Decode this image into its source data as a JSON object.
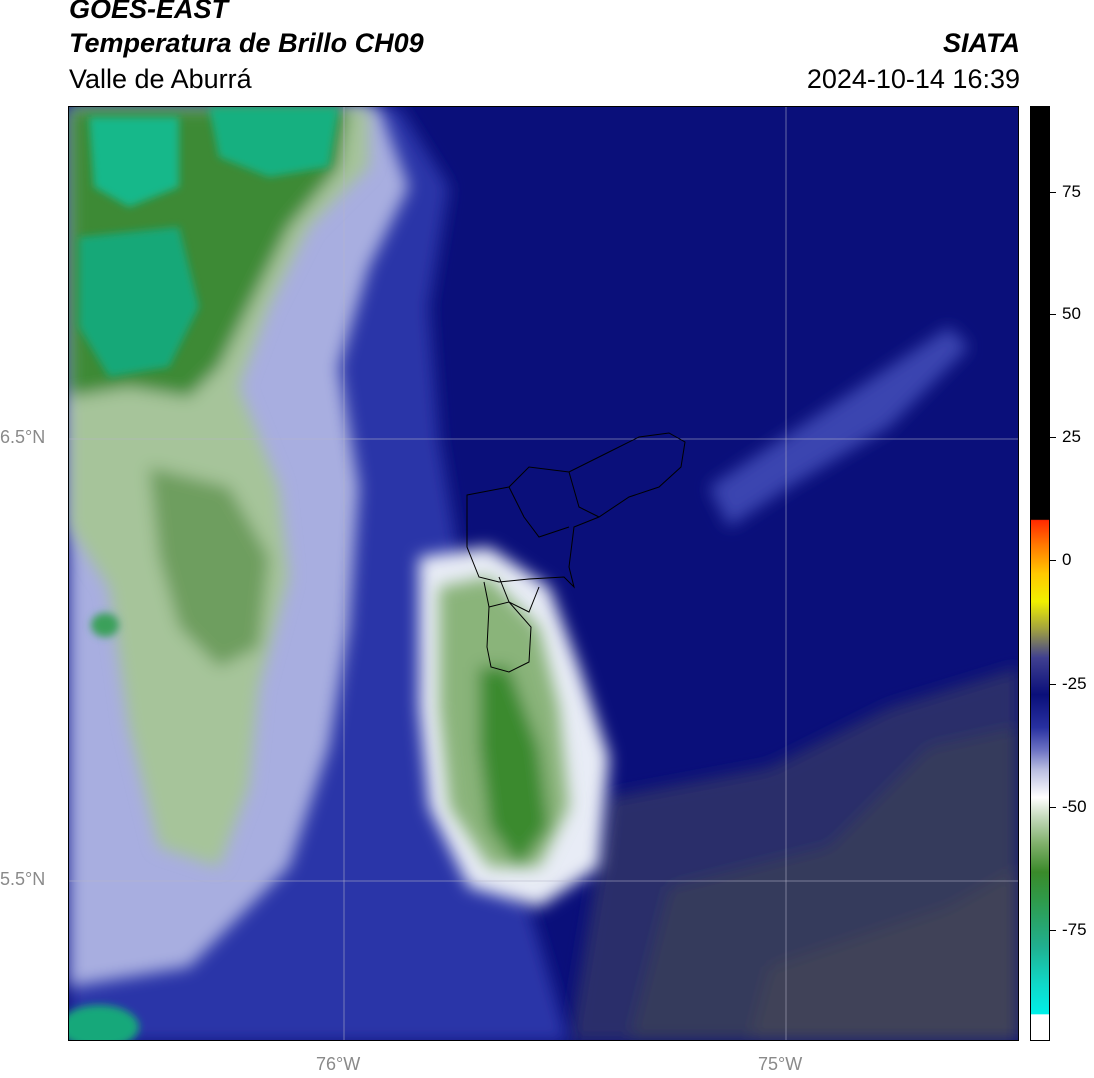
{
  "header": {
    "satellite": "GOES-EAST",
    "product": "Temperatura de Brillo CH09",
    "region": "Valle de Aburrá",
    "agency": "SIATA",
    "datetime": "2024-10-14 16:39"
  },
  "map": {
    "lat_labels": [
      "6.5°N",
      "5.5°N"
    ],
    "lon_labels": [
      "76°W",
      "75°W"
    ]
  },
  "colorbar": {
    "ticks": [
      "75",
      "50",
      "25",
      "0",
      "-25",
      "-50",
      "-75"
    ]
  },
  "colors": {
    "cold_cloud": "#2f8a3a",
    "cyan_core": "#10d0a8",
    "clear_dark_blue": "#0a0f7a",
    "warm_gray": "#3a3f5a"
  }
}
